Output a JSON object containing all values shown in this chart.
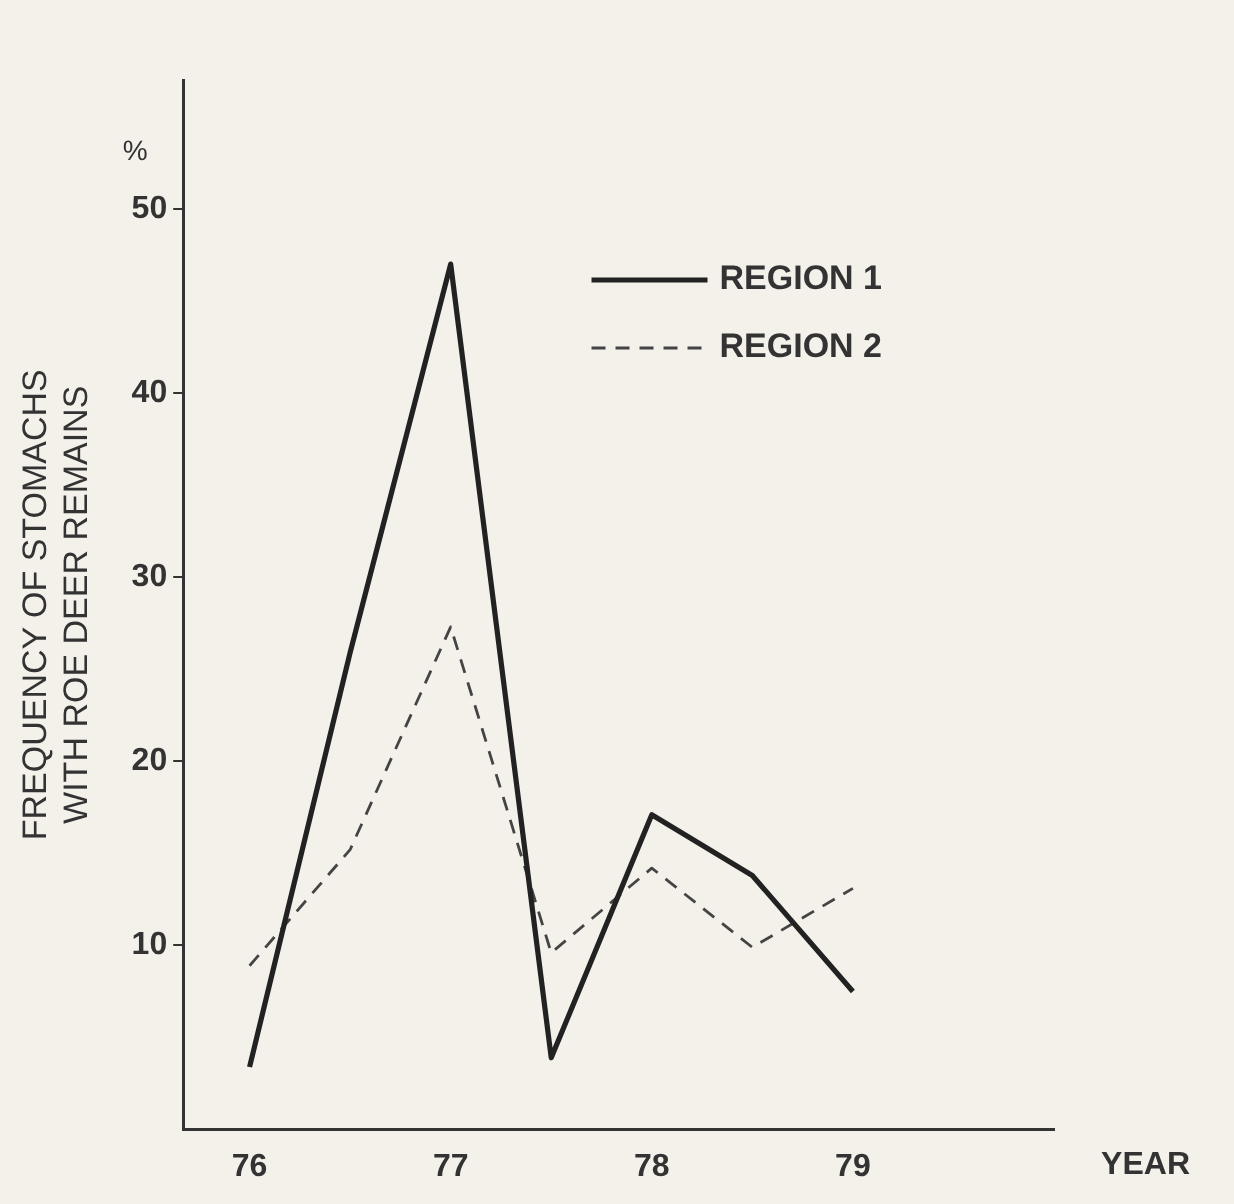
{
  "chart_data": {
    "type": "line",
    "ylabel": "FREQUENCY OF STOMACHS\nWITH ROE DEER REMAINS",
    "xlabel": "YEAR",
    "annotations": [
      "%"
    ],
    "x": [
      76,
      76.5,
      77,
      77.5,
      78,
      78.5,
      79
    ],
    "series": [
      {
        "name": "REGION 1",
        "color": "#222222",
        "line_style": "solid",
        "values": [
          3.4,
          25.9,
          47,
          3.9,
          17.1,
          13.8,
          7.5
        ]
      },
      {
        "name": "REGION 2",
        "color": "#444444",
        "line_style": "dashed",
        "values": [
          8.9,
          15.2,
          27.3,
          9.6,
          14.2,
          9.9,
          13.1
        ]
      }
    ],
    "xlim": [
      75.67,
      80
    ],
    "xticks": [
      76,
      77,
      78,
      79
    ],
    "ylim": [
      0,
      57
    ],
    "yticks": [
      10,
      20,
      30,
      40,
      50
    ],
    "grid": false,
    "legend": "top right",
    "marker": "none"
  }
}
